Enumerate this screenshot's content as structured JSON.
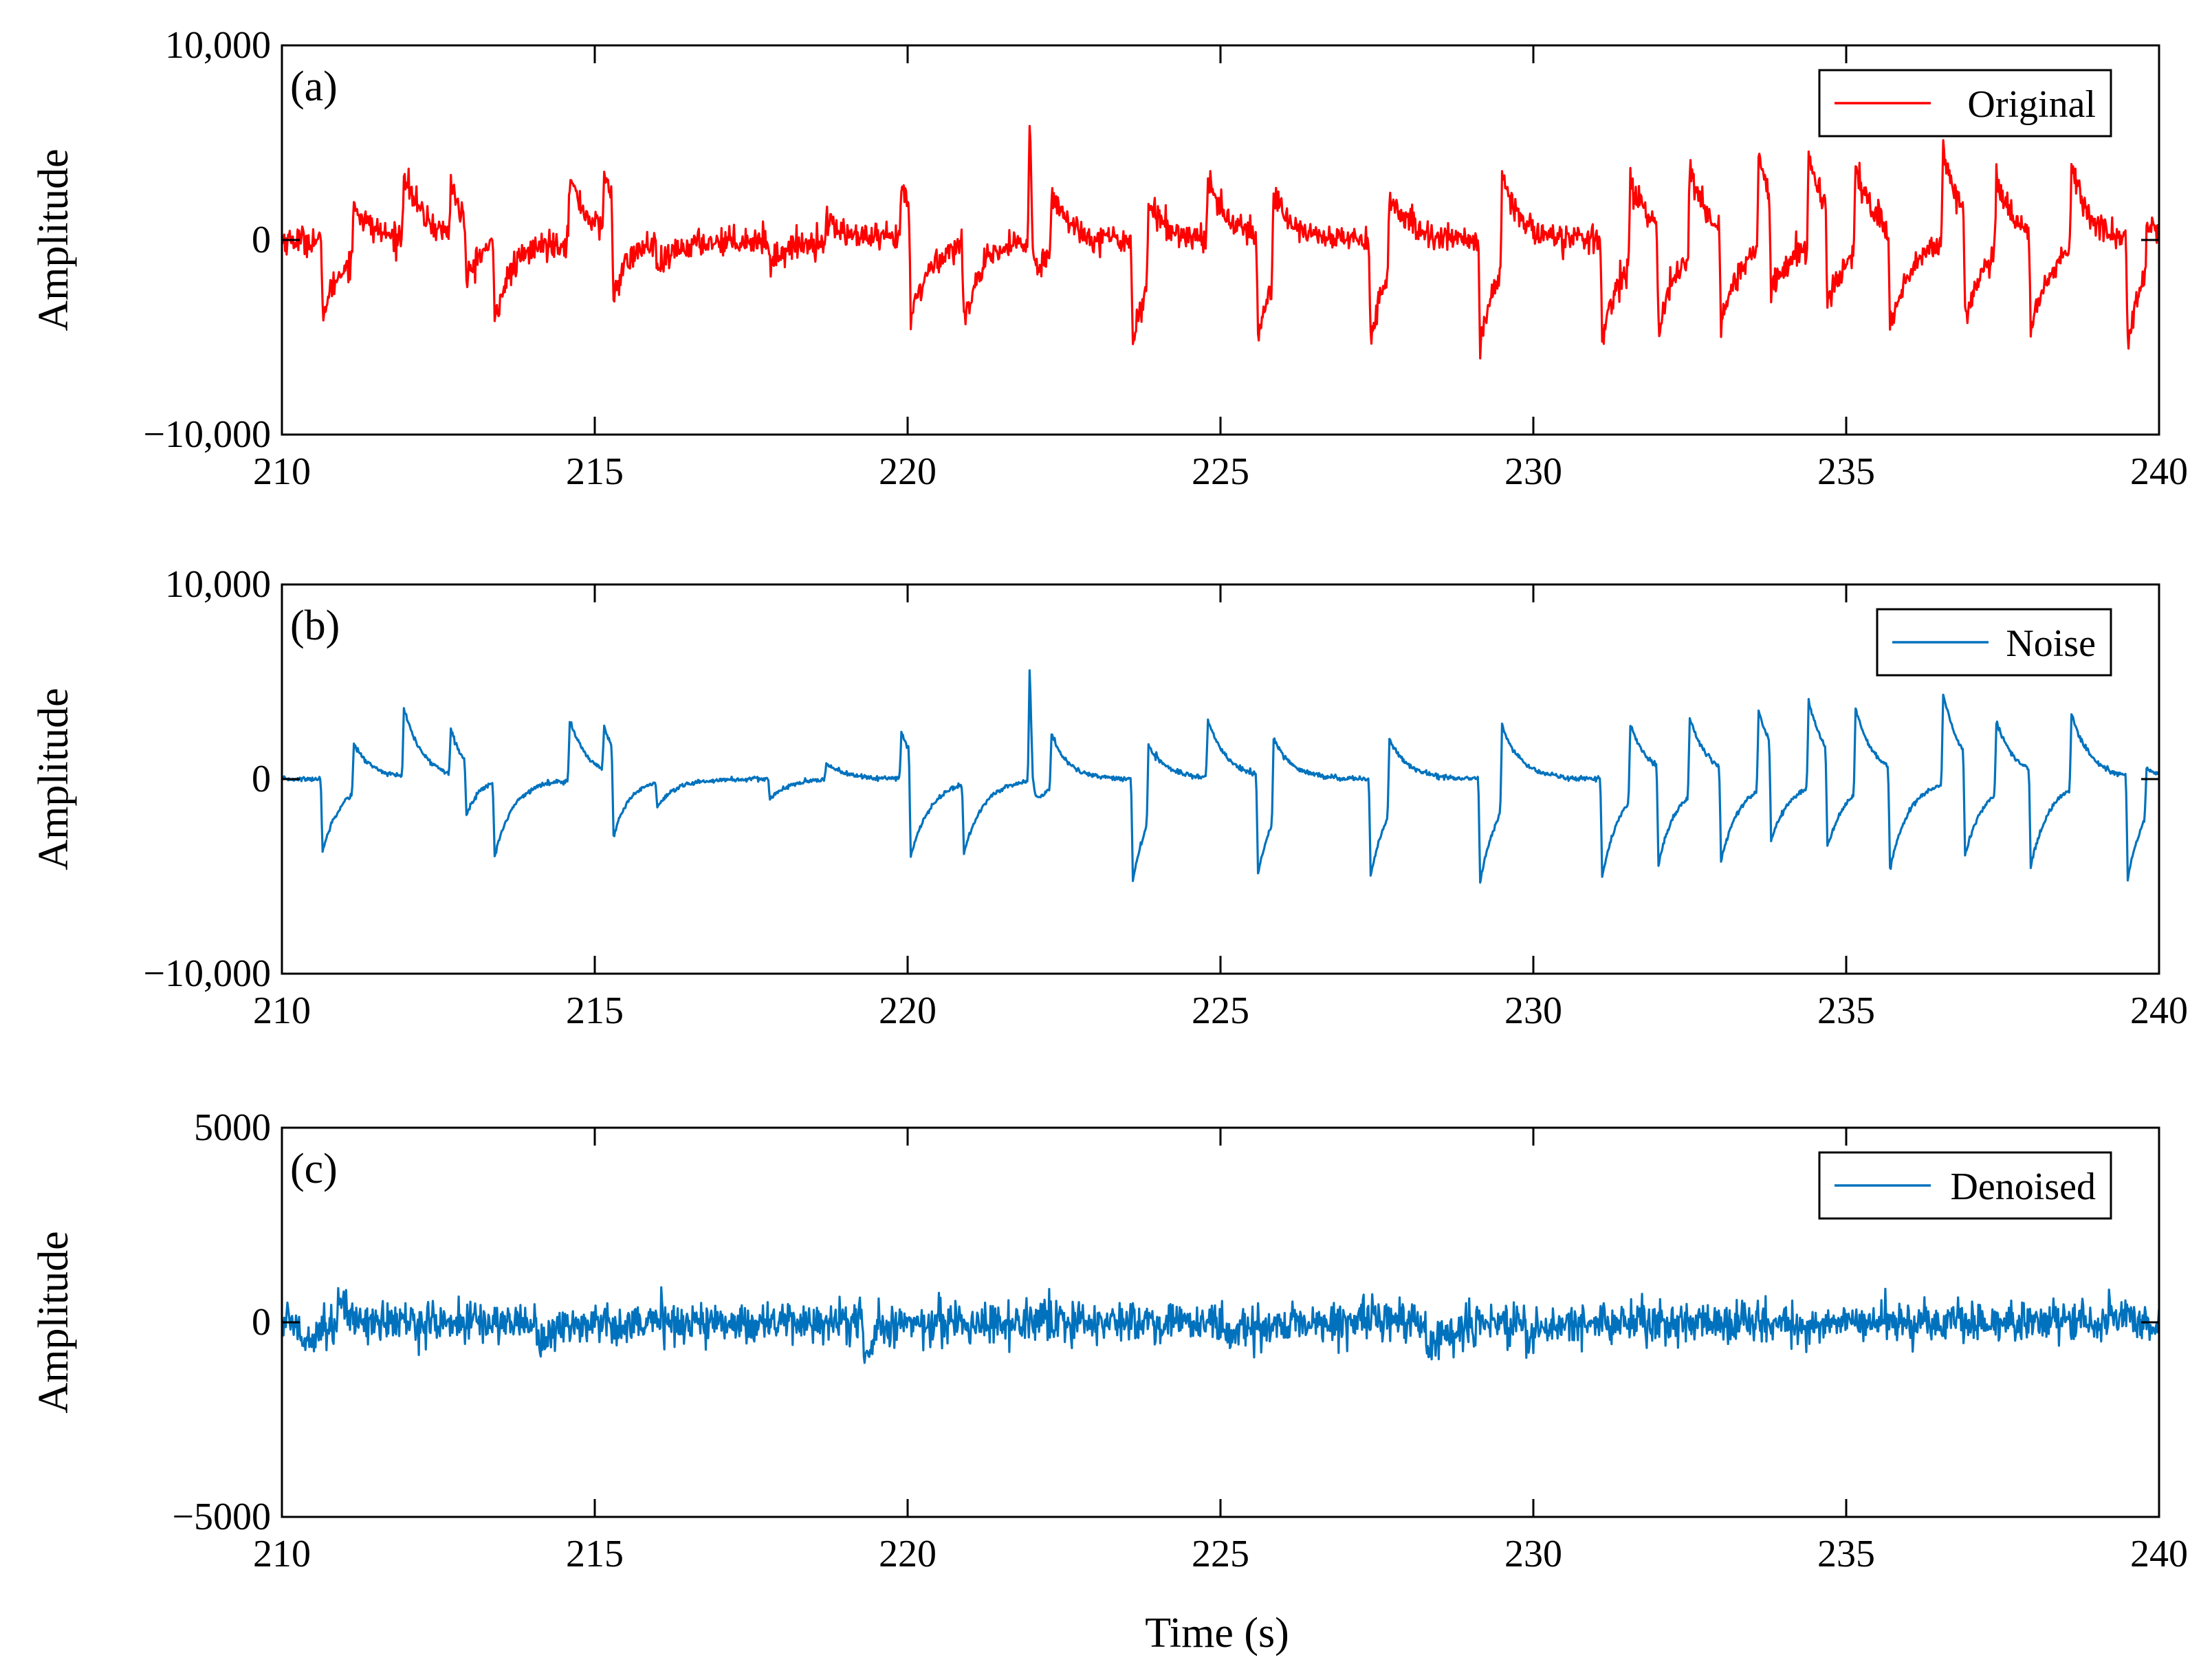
{
  "figure": {
    "xlabel": "Time (s)",
    "ylabel": "Amplitude"
  },
  "chart_data": [
    {
      "type": "line",
      "panel_label": "(a)",
      "title": "",
      "xlabel": "",
      "ylabel": "Amplitude",
      "xlim": [
        210,
        240
      ],
      "ylim": [
        -10000,
        10000
      ],
      "x_ticks": [
        210,
        215,
        220,
        225,
        230,
        235,
        240
      ],
      "x_tick_labels": [
        "210",
        "215",
        "220",
        "225",
        "230",
        "235",
        "240"
      ],
      "y_ticks": [
        -10000,
        0,
        10000
      ],
      "y_tick_labels": [
        "−10,000",
        "0",
        "10,000"
      ],
      "legend": {
        "entries": [
          "Original"
        ],
        "position": "top-right"
      },
      "series": [
        {
          "name": "Original",
          "color": "#FF0000",
          "noise_level": 350,
          "baseline": 0,
          "events": [
            {
              "t": 210.65,
              "v": -3800,
              "tau": 0.35
            },
            {
              "t": 211.15,
              "v": 2800,
              "tau": 0.3
            },
            {
              "t": 211.95,
              "v": 3500,
              "tau": 0.3
            },
            {
              "t": 212.7,
              "v": 2800,
              "tau": 0.2
            },
            {
              "t": 212.95,
              "v": -3200,
              "tau": 0.2
            },
            {
              "t": 213.4,
              "v": -3800,
              "tau": 0.3
            },
            {
              "t": 214.6,
              "v": 3300,
              "tau": 0.3
            },
            {
              "t": 215.15,
              "v": 2900,
              "tau": 0.25
            },
            {
              "t": 215.3,
              "v": -4800,
              "tau": 0.25
            },
            {
              "t": 216.0,
              "v": -1500,
              "tau": 0.3
            },
            {
              "t": 217.8,
              "v": -1200,
              "tau": 0.3
            },
            {
              "t": 218.7,
              "v": 1100,
              "tau": 0.3
            },
            {
              "t": 219.9,
              "v": 2700,
              "tau": 0.25
            },
            {
              "t": 220.05,
              "v": -5500,
              "tau": 0.3
            },
            {
              "t": 220.9,
              "v": -3800,
              "tau": 0.3
            },
            {
              "t": 221.95,
              "v": 6000,
              "tau": 0.05
            },
            {
              "t": 222.0,
              "v": -2500,
              "tau": 0.2
            },
            {
              "t": 222.3,
              "v": 3200,
              "tau": 0.25
            },
            {
              "t": 223.6,
              "v": -5300,
              "tau": 0.3
            },
            {
              "t": 223.85,
              "v": 4200,
              "tau": 0.3
            },
            {
              "t": 224.8,
              "v": 3200,
              "tau": 0.3
            },
            {
              "t": 225.6,
              "v": -5200,
              "tau": 0.3
            },
            {
              "t": 225.85,
              "v": 4600,
              "tau": 0.3
            },
            {
              "t": 227.4,
              "v": -5000,
              "tau": 0.3
            },
            {
              "t": 227.7,
              "v": 4200,
              "tau": 0.3
            },
            {
              "t": 229.15,
              "v": -5500,
              "tau": 0.3
            },
            {
              "t": 229.5,
              "v": 4800,
              "tau": 0.3
            },
            {
              "t": 231.1,
              "v": -5200,
              "tau": 0.3
            },
            {
              "t": 231.55,
              "v": 4200,
              "tau": 0.3
            },
            {
              "t": 232.0,
              "v": -5200,
              "tau": 0.3
            },
            {
              "t": 232.5,
              "v": 4400,
              "tau": 0.3
            },
            {
              "t": 233.0,
              "v": -5000,
              "tau": 0.3
            },
            {
              "t": 233.6,
              "v": 4800,
              "tau": 0.3
            },
            {
              "t": 233.8,
              "v": -5000,
              "tau": 0.3
            },
            {
              "t": 234.4,
              "v": 4800,
              "tau": 0.3
            },
            {
              "t": 234.7,
              "v": -5000,
              "tau": 0.3
            },
            {
              "t": 235.15,
              "v": 4600,
              "tau": 0.3
            },
            {
              "t": 235.7,
              "v": -5200,
              "tau": 0.3
            },
            {
              "t": 236.55,
              "v": 5000,
              "tau": 0.3
            },
            {
              "t": 236.9,
              "v": -5500,
              "tau": 0.3
            },
            {
              "t": 237.4,
              "v": 3800,
              "tau": 0.3
            },
            {
              "t": 237.95,
              "v": -5200,
              "tau": 0.3
            },
            {
              "t": 238.6,
              "v": 4200,
              "tau": 0.3
            },
            {
              "t": 239.5,
              "v": -5500,
              "tau": 0.3
            },
            {
              "t": 239.8,
              "v": 2500,
              "tau": 0.3
            }
          ]
        }
      ]
    },
    {
      "type": "line",
      "panel_label": "(b)",
      "title": "",
      "xlabel": "",
      "ylabel": "Amplitude",
      "xlim": [
        210,
        240
      ],
      "ylim": [
        -10000,
        10000
      ],
      "x_ticks": [
        210,
        215,
        220,
        225,
        230,
        235,
        240
      ],
      "x_tick_labels": [
        "210",
        "215",
        "220",
        "225",
        "230",
        "235",
        "240"
      ],
      "y_ticks": [
        -10000,
        0,
        10000
      ],
      "y_tick_labels": [
        "−10,000",
        "0",
        "10,000"
      ],
      "legend": {
        "entries": [
          "Noise"
        ],
        "position": "top-right"
      },
      "series": [
        {
          "name": "Noise",
          "color": "#0072BD",
          "noise_level": 60,
          "baseline": 0,
          "events": [
            {
              "t": 210.65,
              "v": -3700,
              "tau": 0.3
            },
            {
              "t": 211.15,
              "v": 2500,
              "tau": 0.3
            },
            {
              "t": 211.95,
              "v": 3500,
              "tau": 0.3
            },
            {
              "t": 212.7,
              "v": 2400,
              "tau": 0.2
            },
            {
              "t": 212.95,
              "v": -2700,
              "tau": 0.2
            },
            {
              "t": 213.4,
              "v": -3800,
              "tau": 0.3
            },
            {
              "t": 214.6,
              "v": 3100,
              "tau": 0.3
            },
            {
              "t": 215.15,
              "v": 2200,
              "tau": 0.25
            },
            {
              "t": 215.3,
              "v": -4500,
              "tau": 0.25
            },
            {
              "t": 216.0,
              "v": -1300,
              "tau": 0.3
            },
            {
              "t": 217.8,
              "v": -1000,
              "tau": 0.3
            },
            {
              "t": 218.7,
              "v": 900,
              "tau": 0.3
            },
            {
              "t": 219.9,
              "v": 2400,
              "tau": 0.25
            },
            {
              "t": 220.05,
              "v": -5300,
              "tau": 0.3
            },
            {
              "t": 220.9,
              "v": -3600,
              "tau": 0.3
            },
            {
              "t": 221.95,
              "v": 5700,
              "tau": 0.05
            },
            {
              "t": 222.0,
              "v": -1900,
              "tau": 0.2
            },
            {
              "t": 222.3,
              "v": 2800,
              "tau": 0.25
            },
            {
              "t": 223.6,
              "v": -5200,
              "tau": 0.3
            },
            {
              "t": 223.85,
              "v": 4000,
              "tau": 0.3
            },
            {
              "t": 224.8,
              "v": 3000,
              "tau": 0.3
            },
            {
              "t": 225.6,
              "v": -5100,
              "tau": 0.3
            },
            {
              "t": 225.85,
              "v": 4200,
              "tau": 0.3
            },
            {
              "t": 227.4,
              "v": -5000,
              "tau": 0.3
            },
            {
              "t": 227.7,
              "v": 3900,
              "tau": 0.3
            },
            {
              "t": 229.15,
              "v": -5300,
              "tau": 0.3
            },
            {
              "t": 229.5,
              "v": 4400,
              "tau": 0.3
            },
            {
              "t": 231.1,
              "v": -5000,
              "tau": 0.3
            },
            {
              "t": 231.55,
              "v": 3900,
              "tau": 0.3
            },
            {
              "t": 232.0,
              "v": -5000,
              "tau": 0.3
            },
            {
              "t": 232.5,
              "v": 4000,
              "tau": 0.3
            },
            {
              "t": 233.0,
              "v": -4800,
              "tau": 0.3
            },
            {
              "t": 233.6,
              "v": 4100,
              "tau": 0.3
            },
            {
              "t": 233.8,
              "v": -5000,
              "tau": 0.3
            },
            {
              "t": 234.4,
              "v": 4500,
              "tau": 0.3
            },
            {
              "t": 234.7,
              "v": -5000,
              "tau": 0.3
            },
            {
              "t": 235.15,
              "v": 4400,
              "tau": 0.3
            },
            {
              "t": 235.7,
              "v": -5200,
              "tau": 0.3
            },
            {
              "t": 236.55,
              "v": 4600,
              "tau": 0.3
            },
            {
              "t": 236.9,
              "v": -5300,
              "tau": 0.3
            },
            {
              "t": 237.4,
              "v": 3700,
              "tau": 0.3
            },
            {
              "t": 237.95,
              "v": -5000,
              "tau": 0.3
            },
            {
              "t": 238.6,
              "v": 3900,
              "tau": 0.3
            },
            {
              "t": 239.5,
              "v": -5300,
              "tau": 0.3
            },
            {
              "t": 239.8,
              "v": 2400,
              "tau": 0.3
            }
          ]
        }
      ]
    },
    {
      "type": "line",
      "panel_label": "(c)",
      "title": "",
      "xlabel": "Time (s)",
      "ylabel": "Amplitude",
      "xlim": [
        210,
        240
      ],
      "ylim": [
        -5000,
        5000
      ],
      "x_ticks": [
        210,
        215,
        220,
        225,
        230,
        235,
        240
      ],
      "x_tick_labels": [
        "210",
        "215",
        "220",
        "225",
        "230",
        "235",
        "240"
      ],
      "y_ticks": [
        -5000,
        0,
        5000
      ],
      "y_tick_labels": [
        "−5000",
        "0",
        "5000"
      ],
      "legend": {
        "entries": [
          "Denoised"
        ],
        "position": "top-right"
      },
      "series": [
        {
          "name": "Denoised",
          "color": "#0072BD",
          "noise_level": 260,
          "baseline": 0,
          "events": [
            {
              "t": 210.3,
              "v": -600,
              "tau": 0.2
            },
            {
              "t": 210.9,
              "v": 500,
              "tau": 0.2
            },
            {
              "t": 214.1,
              "v": -500,
              "tau": 0.3
            },
            {
              "t": 219.3,
              "v": -700,
              "tau": 0.2
            },
            {
              "t": 225.1,
              "v": -500,
              "tau": 0.4
            },
            {
              "t": 228.3,
              "v": -900,
              "tau": 0.3
            },
            {
              "t": 229.9,
              "v": -400,
              "tau": 0.3
            },
            {
              "t": 234.2,
              "v": -400,
              "tau": 0.3
            },
            {
              "t": 239.2,
              "v": 400,
              "tau": 0.2
            }
          ]
        }
      ]
    }
  ]
}
